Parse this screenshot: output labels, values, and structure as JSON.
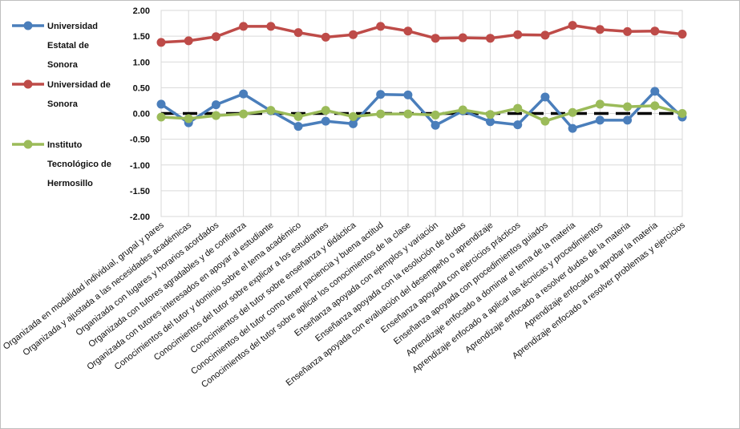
{
  "chart_data": {
    "type": "line",
    "title": "",
    "xlabel": "",
    "ylabel": "",
    "ylim": [
      -2.0,
      2.0
    ],
    "yticks": [
      "2.00",
      "1.50",
      "1.00",
      "0.50",
      "0.00",
      "-0.50",
      "-1.00",
      "-1.50",
      "-2.00"
    ],
    "grid": true,
    "legend_position": "left",
    "categories": [
      "Organizada en modalidad individual, grupal y pares",
      "Organizada y ajustada a las necesidades académicas",
      "Organizada con lugares y horarios acordados",
      "Organizada con tutores agradables y de confianza",
      "Organizada con tutores interesados en apoyar al estudiante",
      "Conocimientos del tutor y dominio sobre el tema académico",
      "Conocimientos del tutor sobre explicar a los estudiantes",
      "Conocimientos del tutor sobre enseñanza y didáctica",
      "Conocimientos del tutor como tener paciencia y buena actitud",
      "Conocimientos del tutor sobre aplicar los conocimientos de la clase",
      "Enseñanza apoyada con ejemplos y variación",
      "Enseñanza apoyada con la resolución de dudas",
      "Enseñanza apoyada con evaluación del desempeño o aprendizaje",
      "Enseñanza apoyada con ejercicios prácticos",
      "Enseñanza apoyada con procedimientos guiados",
      "Aprendizaje enfocado a dominar el tema de la materia",
      "Aprendizaje enfocado a aplicar las técnicas y procedimientos",
      "Aprendizaje enfocado a resolver dudas de la materia",
      "Aprendizaje enfocado a aprobar la materia",
      "Aprendizaje enfocado a resolver problemas y ejercicios"
    ],
    "series": [
      {
        "name": "Universidad Estatal de Sonora",
        "legend_lines": [
          "Universidad",
          "Estatal de",
          "Sonora"
        ],
        "color": "#4a7ebb",
        "values": [
          0.18,
          -0.18,
          0.17,
          0.38,
          0.05,
          -0.25,
          -0.15,
          -0.2,
          0.37,
          0.36,
          -0.23,
          0.05,
          -0.16,
          -0.22,
          0.32,
          -0.29,
          -0.13,
          -0.13,
          0.43,
          -0.07
        ]
      },
      {
        "name": "Universidad de Sonora",
        "legend_lines": [
          "Universidad de",
          "Sonora"
        ],
        "color": "#be4b48",
        "values": [
          1.38,
          1.41,
          1.49,
          1.69,
          1.69,
          1.57,
          1.48,
          1.53,
          1.69,
          1.6,
          1.46,
          1.47,
          1.46,
          1.53,
          1.52,
          1.71,
          1.63,
          1.59,
          1.6,
          1.54
        ]
      },
      {
        "name": "Instituto Tecnológico de Hermosillo",
        "legend_lines": [
          "Instituto",
          "Tecnológico de",
          "Hermosillo"
        ],
        "color": "#9bbb59",
        "values": [
          -0.07,
          -0.1,
          -0.04,
          -0.01,
          0.06,
          -0.06,
          0.06,
          -0.06,
          -0.01,
          -0.01,
          -0.03,
          0.07,
          -0.02,
          0.1,
          -0.15,
          0.02,
          0.18,
          0.13,
          0.15,
          0.0
        ]
      }
    ],
    "reference_line": {
      "value": 0.0,
      "style": "dashed",
      "color": "#000000"
    }
  }
}
